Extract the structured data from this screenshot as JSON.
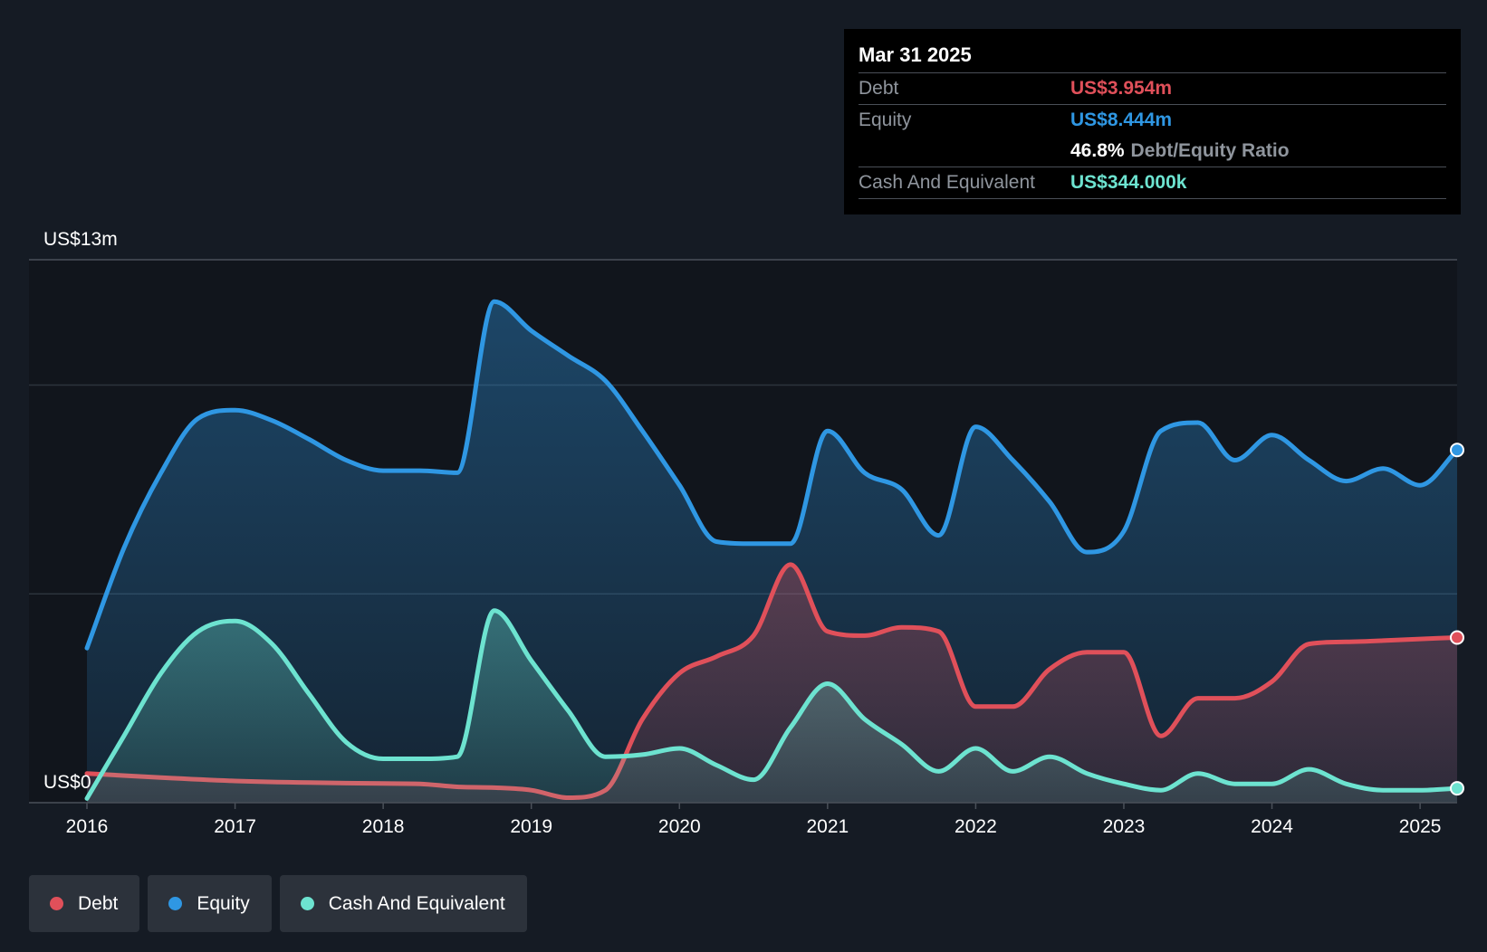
{
  "tooltip": {
    "date": "Mar 31 2025",
    "debt_label": "Debt",
    "debt_value": "US$3.954m",
    "equity_label": "Equity",
    "equity_value": "US$8.444m",
    "ratio_value": "46.8%",
    "ratio_label": "Debt/Equity Ratio",
    "cash_label": "Cash And Equivalent",
    "cash_value": "US$344.000k"
  },
  "legend": {
    "debt": "Debt",
    "equity": "Equity",
    "cash": "Cash And Equivalent"
  },
  "colors": {
    "debt": "#e0505a",
    "equity": "#2f97e3",
    "cash": "#6de3d0",
    "background": "#151b24",
    "plot_background": "#11151c"
  },
  "chart_data": {
    "type": "area",
    "ylim": [
      0,
      13
    ],
    "xlim": [
      2016.0,
      2025.25
    ],
    "y_tick_labels": [
      {
        "value": 13,
        "label": "US$13m"
      },
      {
        "value": 0,
        "label": "US$0"
      }
    ],
    "gridlines": [
      13,
      10,
      5
    ],
    "x_ticks": [
      2016,
      2017,
      2018,
      2019,
      2020,
      2021,
      2022,
      2023,
      2024,
      2025
    ],
    "x_tick_labels": [
      "2016",
      "2017",
      "2018",
      "2019",
      "2020",
      "2021",
      "2022",
      "2023",
      "2024",
      "2025"
    ],
    "legend_position": "bottom-left",
    "series": [
      {
        "name": "Equity",
        "key": "equity",
        "values": [
          [
            2016.0,
            3.7
          ],
          [
            2016.25,
            6.1
          ],
          [
            2016.5,
            7.9
          ],
          [
            2016.75,
            9.2
          ],
          [
            2017.0,
            9.4
          ],
          [
            2017.25,
            9.15
          ],
          [
            2017.5,
            8.7
          ],
          [
            2017.75,
            8.2
          ],
          [
            2018.0,
            7.95
          ],
          [
            2018.25,
            7.95
          ],
          [
            2018.5,
            7.9
          ],
          [
            2018.75,
            12.0
          ],
          [
            2019.0,
            11.3
          ],
          [
            2019.25,
            10.7
          ],
          [
            2019.5,
            10.1
          ],
          [
            2019.75,
            8.9
          ],
          [
            2020.0,
            7.6
          ],
          [
            2020.25,
            6.25
          ],
          [
            2020.5,
            6.2
          ],
          [
            2020.75,
            6.2
          ],
          [
            2021.0,
            8.9
          ],
          [
            2021.25,
            7.9
          ],
          [
            2021.5,
            7.5
          ],
          [
            2021.75,
            6.4
          ],
          [
            2022.0,
            9.0
          ],
          [
            2022.25,
            8.2
          ],
          [
            2022.5,
            7.2
          ],
          [
            2022.75,
            6.0
          ],
          [
            2023.0,
            6.5
          ],
          [
            2023.25,
            8.9
          ],
          [
            2023.5,
            9.1
          ],
          [
            2023.75,
            8.2
          ],
          [
            2024.0,
            8.8
          ],
          [
            2024.25,
            8.2
          ],
          [
            2024.5,
            7.7
          ],
          [
            2024.75,
            8.0
          ],
          [
            2025.0,
            7.6
          ],
          [
            2025.25,
            8.444
          ]
        ]
      },
      {
        "name": "Debt",
        "key": "debt",
        "values": [
          [
            2016.0,
            0.7
          ],
          [
            2016.5,
            0.6
          ],
          [
            2017.0,
            0.52
          ],
          [
            2017.5,
            0.48
          ],
          [
            2018.0,
            0.46
          ],
          [
            2018.25,
            0.45
          ],
          [
            2018.5,
            0.38
          ],
          [
            2018.75,
            0.36
          ],
          [
            2019.0,
            0.3
          ],
          [
            2019.25,
            0.12
          ],
          [
            2019.5,
            0.3
          ],
          [
            2019.75,
            2.0
          ],
          [
            2020.0,
            3.1
          ],
          [
            2020.25,
            3.5
          ],
          [
            2020.5,
            4.0
          ],
          [
            2020.75,
            5.7
          ],
          [
            2021.0,
            4.1
          ],
          [
            2021.25,
            4.0
          ],
          [
            2021.5,
            4.2
          ],
          [
            2021.75,
            4.1
          ],
          [
            2022.0,
            2.3
          ],
          [
            2022.25,
            2.3
          ],
          [
            2022.5,
            3.2
          ],
          [
            2022.75,
            3.6
          ],
          [
            2023.0,
            3.6
          ],
          [
            2023.25,
            1.6
          ],
          [
            2023.5,
            2.5
          ],
          [
            2023.75,
            2.5
          ],
          [
            2024.0,
            2.9
          ],
          [
            2024.25,
            3.8
          ],
          [
            2024.5,
            3.85
          ],
          [
            2024.75,
            3.88
          ],
          [
            2025.0,
            3.92
          ],
          [
            2025.25,
            3.954
          ]
        ]
      },
      {
        "name": "Cash And Equivalent",
        "key": "cash",
        "values": [
          [
            2016.0,
            0.1
          ],
          [
            2016.25,
            1.6
          ],
          [
            2016.5,
            3.1
          ],
          [
            2016.75,
            4.1
          ],
          [
            2017.0,
            4.35
          ],
          [
            2017.25,
            3.8
          ],
          [
            2017.5,
            2.6
          ],
          [
            2017.75,
            1.45
          ],
          [
            2018.0,
            1.05
          ],
          [
            2018.25,
            1.05
          ],
          [
            2018.5,
            1.1
          ],
          [
            2018.75,
            4.6
          ],
          [
            2019.0,
            3.4
          ],
          [
            2019.25,
            2.2
          ],
          [
            2019.5,
            1.1
          ],
          [
            2019.75,
            1.15
          ],
          [
            2020.0,
            1.3
          ],
          [
            2020.25,
            0.9
          ],
          [
            2020.5,
            0.55
          ],
          [
            2020.75,
            1.8
          ],
          [
            2021.0,
            2.85
          ],
          [
            2021.25,
            2.0
          ],
          [
            2021.5,
            1.4
          ],
          [
            2021.75,
            0.75
          ],
          [
            2022.0,
            1.3
          ],
          [
            2022.25,
            0.75
          ],
          [
            2022.5,
            1.1
          ],
          [
            2022.75,
            0.7
          ],
          [
            2023.0,
            0.45
          ],
          [
            2023.25,
            0.3
          ],
          [
            2023.5,
            0.7
          ],
          [
            2023.75,
            0.45
          ],
          [
            2024.0,
            0.45
          ],
          [
            2024.25,
            0.8
          ],
          [
            2024.5,
            0.45
          ],
          [
            2024.75,
            0.3
          ],
          [
            2025.0,
            0.3
          ],
          [
            2025.25,
            0.344
          ]
        ]
      }
    ]
  }
}
